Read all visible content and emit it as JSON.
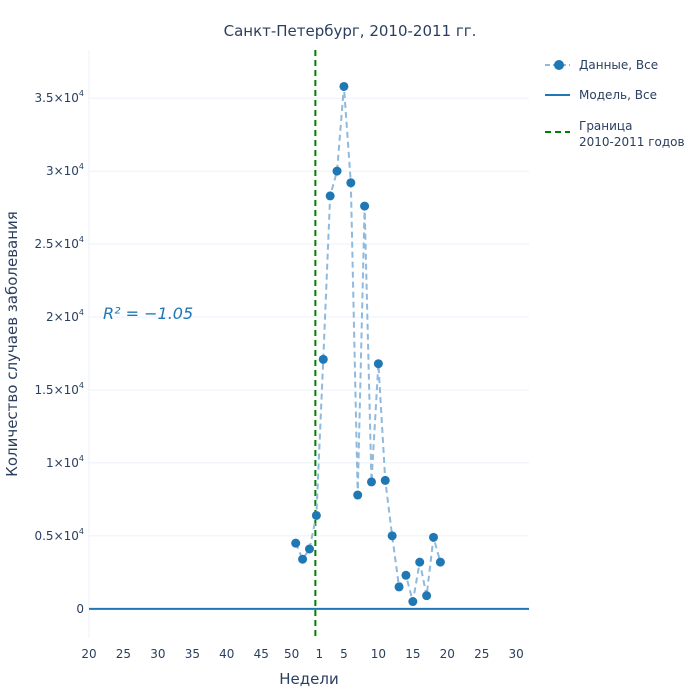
{
  "chart_data": {
    "type": "scatter",
    "title": "Санкт-Петербург, 2010-2011 гг.",
    "xlabel": "Недели",
    "ylabel": "Количество случаев заболевания",
    "annotation": "R² = −1.05",
    "x_ticks": [
      "20",
      "25",
      "30",
      "35",
      "40",
      "45",
      "50",
      "1",
      "5",
      "10",
      "15",
      "20",
      "25",
      "30"
    ],
    "y_ticks": [
      {
        "mant": "0",
        "exp": ""
      },
      {
        "mant": "0.5×10",
        "exp": "4"
      },
      {
        "mant": "1×10",
        "exp": "4"
      },
      {
        "mant": "1.5×10",
        "exp": "4"
      },
      {
        "mant": "2×10",
        "exp": "4"
      },
      {
        "mant": "2.5×10",
        "exp": "4"
      },
      {
        "mant": "3×10",
        "exp": "4"
      },
      {
        "mant": "3.5×10",
        "exp": "4"
      }
    ],
    "ylim": [
      -2000,
      38300
    ],
    "grid": true,
    "legend_position": "top-right",
    "boundary_week": "1",
    "series": [
      {
        "name": "Данные, Все",
        "style": "markers+dashed-line",
        "color": "#1f77b4",
        "weeks": [
          "50",
          "51",
          "52",
          "1",
          "2",
          "3",
          "4",
          "5",
          "6",
          "7",
          "8",
          "9",
          "10",
          "11",
          "12",
          "13",
          "14",
          "15",
          "16",
          "17",
          "18",
          "19",
          "20"
        ],
        "values": [
          4500,
          3400,
          4100,
          6400,
          17100,
          28300,
          30000,
          35800,
          29200,
          7800,
          27600,
          8700,
          16800,
          8800,
          5000,
          1500,
          2300,
          500,
          3200,
          900,
          4900,
          3200,
          0
        ]
      },
      {
        "name": "Модель, Все",
        "style": "line",
        "color": "#1f77b4",
        "value": 0
      },
      {
        "name": "Граница\n2010-2011 годов",
        "style": "dashed-vertical",
        "color": "#008000"
      }
    ]
  }
}
